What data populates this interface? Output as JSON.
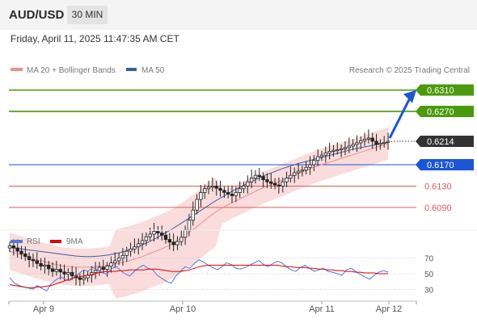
{
  "header": {
    "pair": "AUD/USD",
    "timeframe": "30 MIN",
    "datetime": "Friday, April 11, 2025 11:47:35 AM CET"
  },
  "legend": {
    "ma20": "MA 20 + Bollinger Bands",
    "ma50": "MA 50",
    "credit": "Research © 2025 Trading Central"
  },
  "colors": {
    "green": "#4a9a0c",
    "blue": "#1a56d6",
    "red": "#e15b5b",
    "ma50": "#3a5fa0",
    "bollinger_fill": "#f9d6d6",
    "bollinger_line": "#f08e8e",
    "candle_up": "#222222",
    "candle_body_up": "#ffffff",
    "rsi": "#5577dd",
    "rsi_ma": "#e00000",
    "current": "#333333"
  },
  "chart_data": [
    {
      "type": "candlestick",
      "y_range": [
        0.6055,
        0.6335
      ],
      "x_labels": [
        "Apr 9",
        "Apr 10",
        "Apr 11",
        "Apr 12"
      ],
      "levels": [
        {
          "value": 0.631,
          "label": "0.6310",
          "color": "#4a9a0c",
          "kind": "resistance"
        },
        {
          "value": 0.627,
          "label": "0.6270",
          "color": "#4a9a0c",
          "kind": "resistance"
        },
        {
          "value": 0.6214,
          "label": "0.6214",
          "color": "#333333",
          "kind": "current"
        },
        {
          "value": 0.617,
          "label": "0.6170",
          "color": "#1a56d6",
          "kind": "pivot"
        },
        {
          "value": 0.613,
          "label": "0.6130",
          "color": "#e15b5b",
          "kind": "support"
        },
        {
          "value": 0.609,
          "label": "0.6090",
          "color": "#e15b5b",
          "kind": "support"
        }
      ],
      "close_series": [
        0.6018,
        0.6014,
        0.6008,
        0.6003,
        0.5998,
        0.5992,
        0.599,
        0.5985,
        0.598,
        0.5982,
        0.5975,
        0.597,
        0.5974,
        0.5969,
        0.5965,
        0.5968,
        0.5962,
        0.5958,
        0.5955,
        0.5958,
        0.5963,
        0.5968,
        0.5972,
        0.5978,
        0.5974,
        0.598,
        0.5986,
        0.599,
        0.5995,
        0.6,
        0.6008,
        0.6012,
        0.6016,
        0.6022,
        0.6028,
        0.6035,
        0.604,
        0.6045,
        0.6042,
        0.6038,
        0.603,
        0.6025,
        0.602,
        0.6026,
        0.6034,
        0.6048,
        0.6066,
        0.6085,
        0.6105,
        0.6118,
        0.6125,
        0.6128,
        0.613,
        0.6126,
        0.6122,
        0.6118,
        0.6115,
        0.6112,
        0.6118,
        0.6125,
        0.613,
        0.6138,
        0.6145,
        0.615,
        0.6148,
        0.6142,
        0.6138,
        0.6135,
        0.6132,
        0.613,
        0.6138,
        0.6145,
        0.615,
        0.6155,
        0.6158,
        0.616,
        0.6165,
        0.617,
        0.6178,
        0.6185,
        0.6188,
        0.6192,
        0.6195,
        0.6197,
        0.6198,
        0.62,
        0.6202,
        0.6205,
        0.6208,
        0.6211,
        0.6215,
        0.6218,
        0.622,
        0.6214,
        0.6208,
        0.621,
        0.6212,
        0.6214
      ],
      "ma20_series": [
        0.6008,
        0.6004,
        0.6,
        0.5996,
        0.5992,
        0.5989,
        0.5986,
        0.5983,
        0.598,
        0.5979,
        0.5978,
        0.5978,
        0.5978,
        0.5979,
        0.598,
        0.5982,
        0.5984,
        0.5987,
        0.599,
        0.5994,
        0.5998,
        0.6003,
        0.6008,
        0.6013,
        0.6019,
        0.6026,
        0.6034,
        0.6043,
        0.6052,
        0.6062,
        0.6072,
        0.6081,
        0.6089,
        0.6096,
        0.6102,
        0.6108,
        0.6114,
        0.612,
        0.6126,
        0.6131,
        0.6136,
        0.6141,
        0.6146,
        0.6151,
        0.6156,
        0.6161,
        0.6166,
        0.617,
        0.6174,
        0.6178,
        0.6182,
        0.6186,
        0.619,
        0.6194,
        0.6198,
        0.6202,
        0.6206,
        0.621
      ],
      "ma50_series": [
        0.6015,
        0.6013,
        0.6011,
        0.6009,
        0.6007,
        0.6005,
        0.6003,
        0.6001,
        0.5999,
        0.5998,
        0.5998,
        0.5999,
        0.6001,
        0.6004,
        0.6008,
        0.6013,
        0.6019,
        0.6026,
        0.6034,
        0.6043,
        0.6052,
        0.6062,
        0.6072,
        0.6082,
        0.6092,
        0.6102,
        0.6111,
        0.612,
        0.6128,
        0.6136,
        0.6143,
        0.615,
        0.6156,
        0.6162,
        0.6167,
        0.6172,
        0.6176,
        0.618,
        0.6184,
        0.6188,
        0.6192,
        0.6196,
        0.62,
        0.6203,
        0.6206,
        0.6209,
        0.6212
      ]
    },
    {
      "type": "line",
      "title": "RSI",
      "y_ticks": [
        70,
        50,
        30
      ],
      "ylim": [
        22,
        78
      ],
      "series": [
        {
          "name": "RSI",
          "values": [
            45,
            38,
            35,
            33,
            32,
            30,
            35,
            31,
            28,
            37,
            42,
            46,
            43,
            41,
            46,
            50,
            55,
            53,
            58,
            55,
            52,
            49,
            56,
            60,
            54,
            50,
            47,
            53,
            58,
            61,
            57,
            55,
            48,
            44,
            40,
            38,
            47,
            53,
            59,
            57,
            63,
            68,
            65,
            61,
            58,
            55,
            59,
            64,
            62,
            57,
            56,
            58,
            61,
            64,
            67,
            62,
            59,
            63,
            66,
            64,
            59,
            55,
            53,
            58,
            61,
            57,
            53,
            55,
            57,
            53,
            52,
            50,
            48,
            55,
            57,
            53,
            49,
            46,
            43,
            48,
            52,
            54,
            52
          ]
        },
        {
          "name": "9MA",
          "values": [
            36,
            35,
            34,
            33,
            32,
            32,
            33,
            33,
            34,
            35,
            37,
            39,
            41,
            43,
            45,
            46,
            47,
            48,
            49,
            51,
            52,
            53,
            53,
            53,
            54,
            54,
            55,
            55,
            55,
            55,
            56,
            56,
            56,
            55,
            54,
            53,
            53,
            53,
            54,
            55,
            57,
            59,
            60,
            61,
            61,
            61,
            61,
            61,
            61,
            61,
            61,
            61,
            61,
            61,
            61,
            61,
            61,
            61,
            61,
            60,
            59,
            59,
            58,
            58,
            58,
            57,
            57,
            56,
            56,
            55,
            55,
            54,
            54,
            53,
            53,
            52,
            52,
            51,
            51,
            51,
            50,
            50,
            50
          ]
        }
      ]
    }
  ]
}
